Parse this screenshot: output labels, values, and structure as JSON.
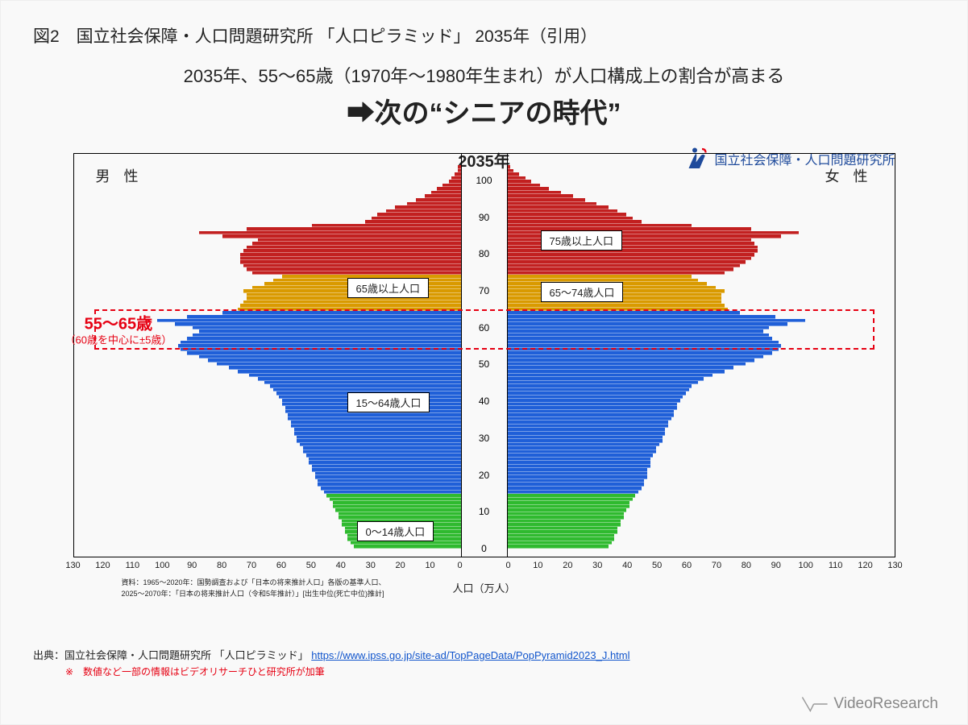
{
  "figure_title": "図2　国立社会保障・人口問題研究所 「人口ピラミッド」 2035年（引用）",
  "headline": {
    "line1": "2035年、55～65歳（1970年～1980年生まれ）が人口構成上の割合が高まる",
    "line2": "➡次の“シニアの時代”"
  },
  "chart": {
    "type": "population-pyramid",
    "year_label": "2035年",
    "org_label": "国立社会保障・人口問題研究所",
    "org_color": "#1e4a9b",
    "gender_left": "男 性",
    "gender_right": "女 性",
    "x_title": "人口（万人）",
    "x_max": 130,
    "x_ticks": [
      0,
      10,
      20,
      30,
      40,
      50,
      60,
      70,
      80,
      90,
      100,
      110,
      120,
      130
    ],
    "y_max_age": 105,
    "y_ticks": [
      0,
      10,
      20,
      30,
      40,
      50,
      60,
      70,
      80,
      90,
      100
    ],
    "colors": {
      "age_0_14": "#2fba2f",
      "age_15_64": "#1f5fd8",
      "age_65_74": "#d99a00",
      "age_75_up": "#c22020",
      "background": "#ffffff",
      "border": "#000000"
    },
    "age_group_labels": {
      "g0": "0～14歳人口",
      "g15": "15～64歳人口",
      "g65_left": "65歳以上人口",
      "g65": "65～74歳人口",
      "g75": "75歳以上人口"
    },
    "highlight": {
      "text_main": "55～65歳",
      "text_sub": "（60歳を中心に±5歳）",
      "color": "#e60012",
      "age_from": 55,
      "age_to": 65
    },
    "data_note_small_1": "資料：1965～2020年：国勢調査および「日本の将来推計人口」各版の基準人口、",
    "data_note_small_2": "2025～2070年：「日本の将来推計人口（令和5年推計）」[出生中位(死亡中位)推計]",
    "male": [
      36,
      37,
      38,
      38,
      39,
      39,
      40,
      40,
      41,
      41,
      42,
      43,
      43,
      44,
      45,
      46,
      47,
      48,
      48,
      49,
      49,
      50,
      50,
      51,
      51,
      52,
      53,
      53,
      54,
      55,
      55,
      56,
      56,
      57,
      57,
      58,
      58,
      59,
      59,
      60,
      60,
      61,
      62,
      63,
      64,
      66,
      68,
      71,
      75,
      78,
      82,
      85,
      88,
      92,
      94,
      95,
      94,
      92,
      90,
      88,
      90,
      96,
      102,
      92,
      80,
      75,
      74,
      73,
      72,
      72,
      73,
      70,
      66,
      63,
      60,
      70,
      72,
      73,
      74,
      74,
      74,
      73,
      72,
      70,
      68,
      80,
      88,
      72,
      50,
      32,
      30,
      28,
      25,
      22,
      18,
      15,
      12,
      10,
      8,
      6,
      4,
      3,
      2,
      1,
      1,
      0
    ],
    "female": [
      34,
      35,
      36,
      36,
      37,
      37,
      38,
      38,
      39,
      39,
      40,
      41,
      41,
      42,
      43,
      44,
      45,
      46,
      46,
      47,
      47,
      47,
      48,
      48,
      48,
      49,
      50,
      50,
      51,
      52,
      52,
      53,
      53,
      54,
      54,
      55,
      56,
      56,
      57,
      57,
      58,
      59,
      60,
      61,
      62,
      64,
      66,
      69,
      73,
      76,
      80,
      83,
      86,
      89,
      91,
      92,
      91,
      89,
      88,
      86,
      88,
      94,
      100,
      90,
      78,
      74,
      73,
      72,
      72,
      72,
      73,
      70,
      67,
      64,
      62,
      73,
      76,
      78,
      80,
      82,
      83,
      84,
      84,
      83,
      82,
      92,
      98,
      82,
      62,
      45,
      42,
      40,
      37,
      34,
      30,
      26,
      22,
      18,
      14,
      11,
      8,
      6,
      4,
      2,
      1,
      0
    ]
  },
  "footer": {
    "source_prefix": "出典：国立社会保障・人口問題研究所 「人口ピラミッド」 ",
    "source_url": "https://www.ipss.go.jp/site-ad/TopPageData/PopPyramid2023_J.html",
    "note": "※　数値など一部の情報はビデオリサーチひと研究所が加筆"
  },
  "brand": "VideoResearch"
}
